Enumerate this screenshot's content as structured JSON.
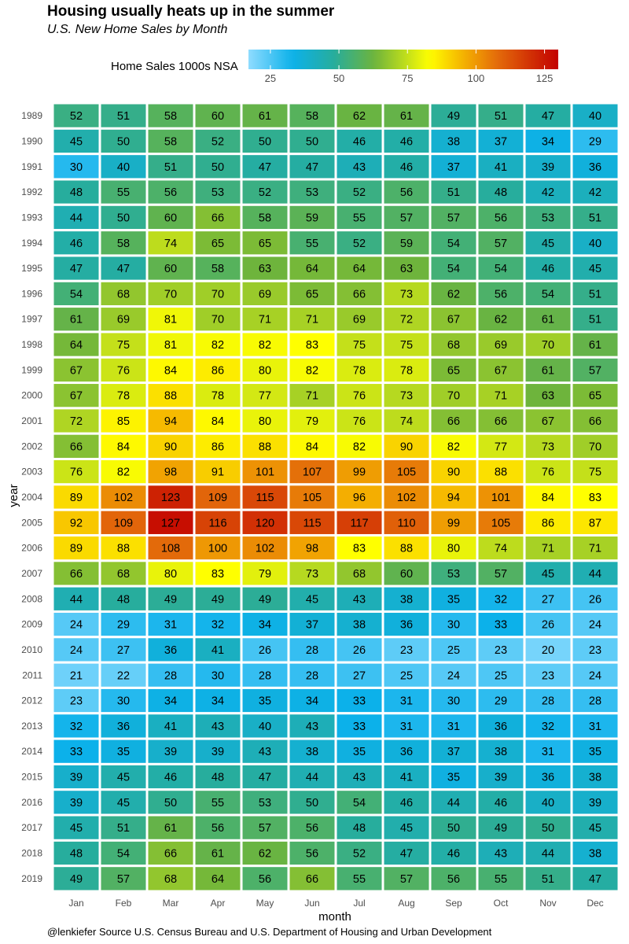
{
  "title": "Housing usually heats up in the summer",
  "subtitle": "U.S. New Home Sales  by Month",
  "caption": "@lenkiefer Source U.S. Census Bureau and U.S. Department of Housing and Urban Development",
  "chart_data": {
    "type": "heatmap",
    "title": "Housing usually heats up in the summer",
    "subtitle": "U.S. New Home Sales  by Month",
    "xlabel": "month",
    "ylabel": "year",
    "legend": {
      "title": "Home Sales 1000s NSA",
      "position": "top",
      "range": [
        17,
        130
      ],
      "ticks": [
        25,
        50,
        75,
        100,
        125
      ]
    },
    "colorscale": [
      {
        "value": 17,
        "color": "#8fdcff"
      },
      {
        "value": 33,
        "color": "#0cb1ea"
      },
      {
        "value": 48,
        "color": "#27ad9d"
      },
      {
        "value": 63,
        "color": "#6eb43c"
      },
      {
        "value": 75,
        "color": "#c4e01a"
      },
      {
        "value": 83,
        "color": "#ffff00"
      },
      {
        "value": 95,
        "color": "#f5b400"
      },
      {
        "value": 108,
        "color": "#e36a0a"
      },
      {
        "value": 130,
        "color": "#c30000"
      }
    ],
    "x": [
      "Jan",
      "Feb",
      "Mar",
      "Apr",
      "May",
      "Jun",
      "Jul",
      "Aug",
      "Sep",
      "Oct",
      "Nov",
      "Dec"
    ],
    "y": [
      "1989",
      "1990",
      "1991",
      "1992",
      "1993",
      "1994",
      "1995",
      "1996",
      "1997",
      "1998",
      "1999",
      "2000",
      "2001",
      "2002",
      "2003",
      "2004",
      "2005",
      "2006",
      "2007",
      "2008",
      "2009",
      "2010",
      "2011",
      "2012",
      "2013",
      "2014",
      "2015",
      "2016",
      "2017",
      "2018",
      "2019"
    ],
    "values": [
      [
        52,
        51,
        58,
        60,
        61,
        58,
        62,
        61,
        49,
        51,
        47,
        40
      ],
      [
        45,
        50,
        58,
        52,
        50,
        50,
        46,
        46,
        38,
        37,
        34,
        29
      ],
      [
        30,
        40,
        51,
        50,
        47,
        47,
        43,
        46,
        37,
        41,
        39,
        36
      ],
      [
        48,
        55,
        56,
        53,
        52,
        53,
        52,
        56,
        51,
        48,
        42,
        42
      ],
      [
        44,
        50,
        60,
        66,
        58,
        59,
        55,
        57,
        57,
        56,
        53,
        51
      ],
      [
        46,
        58,
        74,
        65,
        65,
        55,
        52,
        59,
        54,
        57,
        45,
        40
      ],
      [
        47,
        47,
        60,
        58,
        63,
        64,
        64,
        63,
        54,
        54,
        46,
        45
      ],
      [
        54,
        68,
        70,
        70,
        69,
        65,
        66,
        73,
        62,
        56,
        54,
        51
      ],
      [
        61,
        69,
        81,
        70,
        71,
        71,
        69,
        72,
        67,
        62,
        61,
        51
      ],
      [
        64,
        75,
        81,
        82,
        82,
        83,
        75,
        75,
        68,
        69,
        70,
        61
      ],
      [
        67,
        76,
        84,
        86,
        80,
        82,
        78,
        78,
        65,
        67,
        61,
        57
      ],
      [
        67,
        78,
        88,
        78,
        77,
        71,
        76,
        73,
        70,
        71,
        63,
        65
      ],
      [
        72,
        85,
        94,
        84,
        80,
        79,
        76,
        74,
        66,
        66,
        67,
        66
      ],
      [
        66,
        84,
        90,
        86,
        88,
        84,
        82,
        90,
        82,
        77,
        73,
        70
      ],
      [
        76,
        82,
        98,
        91,
        101,
        107,
        99,
        105,
        90,
        88,
        76,
        75
      ],
      [
        89,
        102,
        123,
        109,
        115,
        105,
        96,
        102,
        94,
        101,
        84,
        83
      ],
      [
        92,
        109,
        127,
        116,
        120,
        115,
        117,
        110,
        99,
        105,
        86,
        87
      ],
      [
        89,
        88,
        108,
        100,
        102,
        98,
        83,
        88,
        80,
        74,
        71,
        71
      ],
      [
        66,
        68,
        80,
        83,
        79,
        73,
        68,
        60,
        53,
        57,
        45,
        44
      ],
      [
        44,
        48,
        49,
        49,
        49,
        45,
        43,
        38,
        35,
        32,
        27,
        26
      ],
      [
        24,
        29,
        31,
        32,
        34,
        37,
        38,
        36,
        30,
        33,
        26,
        24
      ],
      [
        24,
        27,
        36,
        41,
        26,
        28,
        26,
        23,
        25,
        23,
        20,
        23
      ],
      [
        21,
        22,
        28,
        30,
        28,
        28,
        27,
        25,
        24,
        25,
        23,
        24
      ],
      [
        23,
        30,
        34,
        34,
        35,
        34,
        33,
        31,
        30,
        29,
        28,
        28
      ],
      [
        32,
        36,
        41,
        43,
        40,
        43,
        33,
        31,
        31,
        36,
        32,
        31
      ],
      [
        33,
        35,
        39,
        39,
        43,
        38,
        35,
        36,
        37,
        38,
        31,
        35
      ],
      [
        39,
        45,
        46,
        48,
        47,
        44,
        43,
        41,
        35,
        39,
        36,
        38
      ],
      [
        39,
        45,
        50,
        55,
        53,
        50,
        54,
        46,
        44,
        46,
        40,
        39
      ],
      [
        45,
        51,
        61,
        56,
        57,
        56,
        48,
        45,
        50,
        49,
        50,
        45
      ],
      [
        48,
        54,
        66,
        61,
        62,
        56,
        52,
        47,
        46,
        43,
        44,
        38
      ],
      [
        49,
        57,
        68,
        64,
        56,
        66,
        55,
        57,
        56,
        55,
        51,
        47
      ]
    ]
  }
}
